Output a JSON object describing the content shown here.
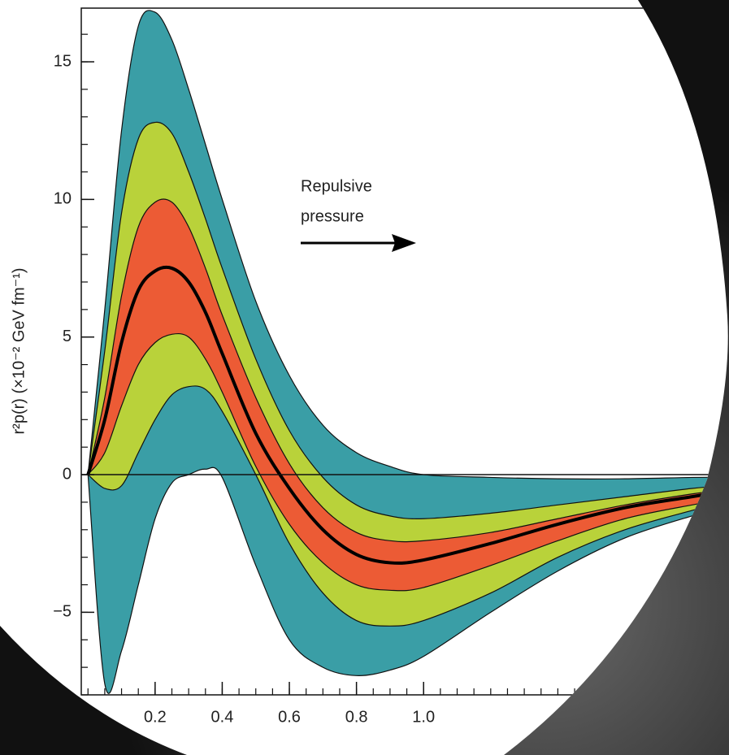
{
  "chart_data": {
    "type": "band",
    "y_label": "r²p(r) (×10⁻² GeV fm⁻¹)",
    "annotation": [
      "Repulsive",
      "pressure"
    ],
    "x": [
      0,
      0.05,
      0.1,
      0.15,
      0.2,
      0.25,
      0.3,
      0.35,
      0.4,
      0.5,
      0.6,
      0.7,
      0.8,
      0.9,
      1.0,
      1.2,
      1.4,
      1.6,
      1.8,
      1.9
    ],
    "bands": [
      {
        "color": "#3a9ea6",
        "upper": [
          0,
          6,
          12.5,
          16.3,
          16.8,
          15.8,
          14.0,
          12.0,
          10.0,
          6.3,
          3.6,
          1.8,
          0.8,
          0.3,
          0,
          -0.1,
          -0.15,
          -0.15,
          -0.1,
          -0.1
        ],
        "lower": [
          0,
          -7.6,
          -6.4,
          -4.0,
          -1.6,
          -0.3,
          0.0,
          0.2,
          -0.1,
          -3.3,
          -6.0,
          -7.0,
          -7.3,
          -7.1,
          -6.6,
          -5.0,
          -3.5,
          -2.3,
          -1.5,
          -1.2
        ]
      },
      {
        "color": "#b9d23a",
        "upper": [
          0,
          4.5,
          9.5,
          12.2,
          12.8,
          12.4,
          11.0,
          9.3,
          7.5,
          4.2,
          1.6,
          -0.1,
          -1.1,
          -1.5,
          -1.6,
          -1.4,
          -1.1,
          -0.8,
          -0.5,
          -0.4
        ],
        "lower": [
          0,
          -0.5,
          -0.4,
          0.8,
          2.0,
          2.9,
          3.2,
          3.1,
          2.3,
          0.0,
          -2.5,
          -4.3,
          -5.3,
          -5.5,
          -5.3,
          -4.3,
          -3.0,
          -2.0,
          -1.3,
          -1.0
        ]
      },
      {
        "color": "#ec5b35",
        "upper": [
          0,
          2.8,
          6.5,
          9.0,
          9.9,
          9.9,
          9.0,
          7.5,
          5.8,
          2.8,
          0.4,
          -1.2,
          -2.1,
          -2.4,
          -2.4,
          -2.1,
          -1.6,
          -1.1,
          -0.7,
          -0.55
        ],
        "lower": [
          0,
          0.8,
          2.5,
          4.0,
          4.8,
          5.1,
          5.0,
          4.2,
          3.0,
          0.3,
          -1.8,
          -3.2,
          -4.0,
          -4.2,
          -4.1,
          -3.3,
          -2.4,
          -1.6,
          -1.1,
          -0.9
        ]
      }
    ],
    "line": {
      "color": "#000000",
      "values": [
        0,
        2.0,
        4.8,
        6.7,
        7.4,
        7.5,
        7.0,
        5.9,
        4.4,
        1.5,
        -0.5,
        -2.0,
        -2.9,
        -3.2,
        -3.1,
        -2.5,
        -1.8,
        -1.2,
        -0.8,
        -0.6
      ]
    },
    "xlim": [
      -0.02,
      1.91
    ],
    "ylim": [
      -8.0,
      16.95
    ],
    "xticks": [
      0.2,
      0.4,
      0.6,
      0.8,
      {
        "value": 1,
        "label": "1.0"
      }
    ],
    "yticks": [
      {
        "value": -5,
        "label": "−5"
      },
      0,
      5,
      10,
      15
    ],
    "x_minor_step": 0.05,
    "y_minor_step": 1
  }
}
